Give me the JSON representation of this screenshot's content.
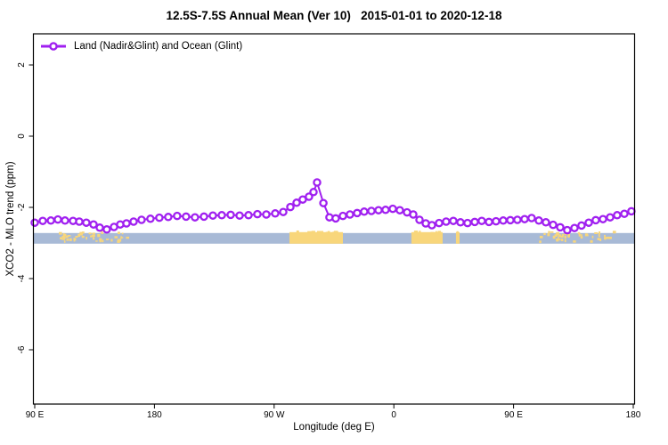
{
  "header": {
    "title": "12.5S-7.5S Annual Mean (Ver 10)   2015-01-01 to 2020-12-18"
  },
  "legend": {
    "label": "Land (Nadir&Glint) and Ocean (Glint)",
    "marker_color": "#A020F0"
  },
  "chart_data": {
    "type": "line",
    "title": "12.5S-7.5S Annual Mean (Ver 10)   2015-01-01 to 2020-12-18",
    "xlabel": "Longitude (deg E)",
    "ylabel": "XCO2 - MLO trend (ppm)",
    "legend_position": "topleft",
    "grid": false,
    "x_axis_min": 90,
    "x_axis_max": 540,
    "ylim": [
      -7.55,
      2.85
    ],
    "x_ticks": [
      {
        "pos": 90,
        "label": "90 E"
      },
      {
        "pos": 180,
        "label": "180"
      },
      {
        "pos": 270,
        "label": "90 W"
      },
      {
        "pos": 360,
        "label": "0"
      },
      {
        "pos": 450,
        "label": "90 E"
      },
      {
        "pos": 540,
        "label": "180"
      }
    ],
    "y_ticks": [
      {
        "pos": 2,
        "label": "2"
      },
      {
        "pos": 0,
        "label": "0"
      },
      {
        "pos": -2,
        "label": "-2"
      },
      {
        "pos": -4,
        "label": "-4"
      },
      {
        "pos": -6,
        "label": "-6"
      }
    ],
    "series": [
      {
        "name": "Land (Nadir&Glint) and Ocean (Glint)",
        "color": "#A020F0",
        "marker": "open-circle",
        "points": [
          [
            90.0,
            -2.43
          ],
          [
            96.0,
            -2.38
          ],
          [
            102.1,
            -2.37
          ],
          [
            107.4,
            -2.34
          ],
          [
            112.8,
            -2.37
          ],
          [
            118.8,
            -2.38
          ],
          [
            123.5,
            -2.4
          ],
          [
            128.8,
            -2.43
          ],
          [
            134.2,
            -2.48
          ],
          [
            138.9,
            -2.57
          ],
          [
            144.2,
            -2.62
          ],
          [
            149.6,
            -2.55
          ],
          [
            154.3,
            -2.48
          ],
          [
            159.0,
            -2.45
          ],
          [
            164.3,
            -2.4
          ],
          [
            170.3,
            -2.35
          ],
          [
            177.0,
            -2.32
          ],
          [
            183.7,
            -2.29
          ],
          [
            190.4,
            -2.27
          ],
          [
            197.1,
            -2.24
          ],
          [
            203.8,
            -2.26
          ],
          [
            210.5,
            -2.28
          ],
          [
            217.2,
            -2.26
          ],
          [
            223.9,
            -2.23
          ],
          [
            230.6,
            -2.22
          ],
          [
            237.3,
            -2.21
          ],
          [
            244.0,
            -2.23
          ],
          [
            250.7,
            -2.22
          ],
          [
            257.4,
            -2.19
          ],
          [
            264.1,
            -2.2
          ],
          [
            270.8,
            -2.17
          ],
          [
            276.8,
            -2.13
          ],
          [
            282.2,
            -1.99
          ],
          [
            286.9,
            -1.87
          ],
          [
            291.5,
            -1.78
          ],
          [
            296.2,
            -1.7
          ],
          [
            299.6,
            -1.57
          ],
          [
            302.3,
            -1.3
          ],
          [
            307.0,
            -1.88
          ],
          [
            311.6,
            -2.28
          ],
          [
            316.3,
            -2.31
          ],
          [
            321.7,
            -2.24
          ],
          [
            327.0,
            -2.2
          ],
          [
            332.4,
            -2.16
          ],
          [
            337.7,
            -2.12
          ],
          [
            343.1,
            -2.1
          ],
          [
            348.5,
            -2.08
          ],
          [
            353.8,
            -2.07
          ],
          [
            359.2,
            -2.04
          ],
          [
            364.5,
            -2.08
          ],
          [
            369.9,
            -2.14
          ],
          [
            374.6,
            -2.2
          ],
          [
            379.3,
            -2.35
          ],
          [
            384.0,
            -2.45
          ],
          [
            388.6,
            -2.5
          ],
          [
            394.0,
            -2.44
          ],
          [
            399.3,
            -2.4
          ],
          [
            404.7,
            -2.38
          ],
          [
            410.1,
            -2.42
          ],
          [
            415.4,
            -2.44
          ],
          [
            420.8,
            -2.41
          ],
          [
            426.1,
            -2.38
          ],
          [
            431.5,
            -2.41
          ],
          [
            436.8,
            -2.39
          ],
          [
            442.2,
            -2.37
          ],
          [
            447.6,
            -2.36
          ],
          [
            452.9,
            -2.35
          ],
          [
            458.3,
            -2.33
          ],
          [
            463.6,
            -2.3
          ],
          [
            469.0,
            -2.37
          ],
          [
            474.3,
            -2.42
          ],
          [
            479.7,
            -2.49
          ],
          [
            485.1,
            -2.56
          ],
          [
            490.4,
            -2.64
          ],
          [
            495.8,
            -2.58
          ],
          [
            501.1,
            -2.51
          ],
          [
            506.5,
            -2.43
          ],
          [
            511.8,
            -2.36
          ],
          [
            517.2,
            -2.33
          ],
          [
            522.6,
            -2.28
          ],
          [
            527.9,
            -2.22
          ],
          [
            533.3,
            -2.18
          ],
          [
            538.6,
            -2.11
          ]
        ]
      }
    ],
    "map_strip": {
      "ppm_top": -2.72,
      "ppm_bottom": -3.02,
      "ocean_color": "#A8BAD6",
      "land_color": "#F8D67B",
      "land_segments": [
        {
          "from": 108.1,
          "to": 162.3,
          "style": "speckle"
        },
        {
          "from": 281.5,
          "to": 321.7,
          "style": "solid"
        },
        {
          "from": 373.2,
          "to": 396.7,
          "style": "solid"
        },
        {
          "from": 406.7,
          "to": 409.4,
          "style": "solid"
        },
        {
          "from": 468.3,
          "to": 525.9,
          "style": "speckle"
        }
      ]
    }
  }
}
